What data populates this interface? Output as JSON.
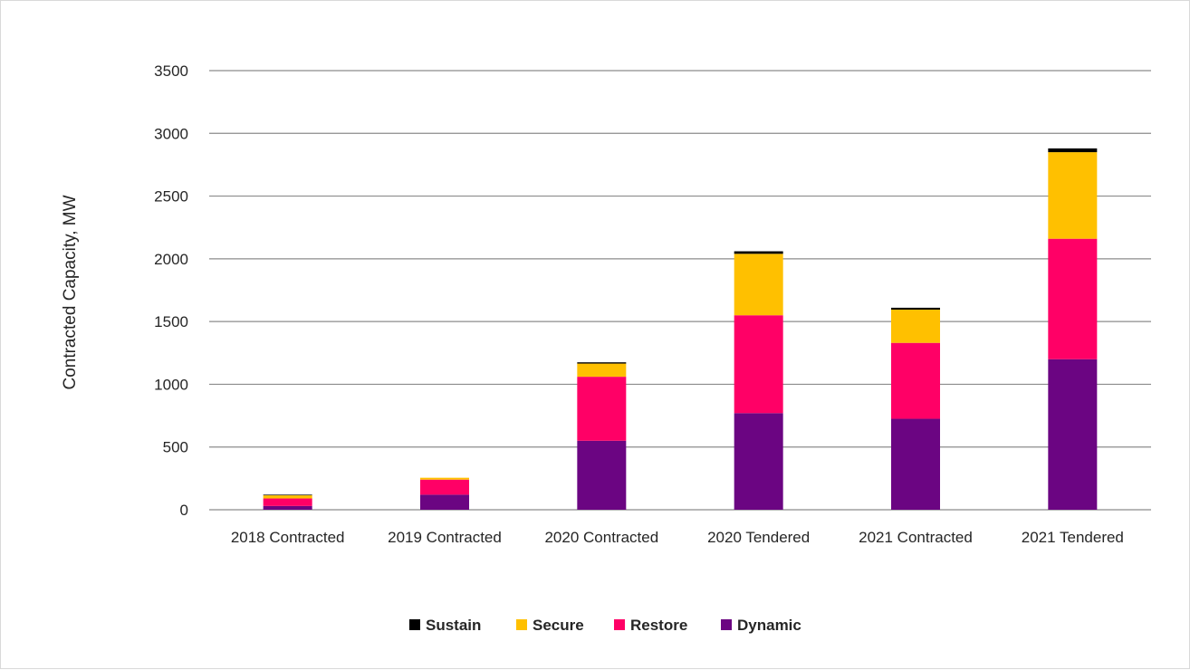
{
  "chart_data": {
    "type": "bar",
    "stacked": true,
    "title": "",
    "xlabel": "",
    "ylabel": "Contracted Capacity, MW",
    "ylim": [
      0,
      3500
    ],
    "yticks": [
      0,
      500,
      1000,
      1500,
      2000,
      2500,
      3000,
      3500
    ],
    "grid": true,
    "legend_position": "bottom",
    "categories": [
      "2018 Contracted",
      "2019 Contracted",
      "2020 Contracted",
      "2020 Tendered",
      "2021 Contracted",
      "2021 Tendered"
    ],
    "series": [
      {
        "name": "Dynamic",
        "color": "#6b0582",
        "values": [
          30,
          120,
          550,
          770,
          725,
          1200
        ]
      },
      {
        "name": "Restore",
        "color": "#ff0066",
        "values": [
          60,
          120,
          510,
          780,
          605,
          960
        ]
      },
      {
        "name": "Secure",
        "color": "#ffc000",
        "values": [
          25,
          15,
          105,
          490,
          265,
          690
        ]
      },
      {
        "name": "Sustain",
        "color": "#000000",
        "values": [
          5,
          0,
          10,
          20,
          15,
          30
        ]
      }
    ],
    "legend": [
      {
        "name": "Sustain",
        "color": "#000000"
      },
      {
        "name": "Secure",
        "color": "#ffc000"
      },
      {
        "name": "Restore",
        "color": "#ff0066"
      },
      {
        "name": "Dynamic",
        "color": "#6b0582"
      }
    ]
  }
}
